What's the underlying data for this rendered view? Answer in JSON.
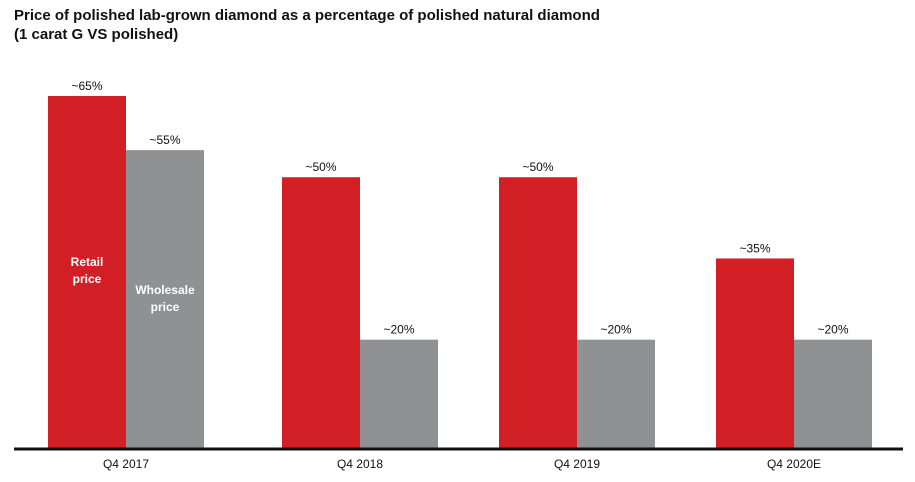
{
  "chart_data": {
    "type": "bar",
    "title": "Price of polished lab-grown diamond as a percentage of polished natural diamond",
    "subtitle": "(1 carat G VS polished)",
    "xlabel": "",
    "ylabel": "",
    "ylim": [
      0,
      65
    ],
    "grid": false,
    "legend": "inline labels on first group",
    "categories": [
      "Q4 2017",
      "Q4 2018",
      "Q4 2019",
      "Q4 2020E"
    ],
    "series": [
      {
        "name": "Retail price",
        "color": "#d21f26",
        "values": [
          65,
          50,
          50,
          35
        ],
        "labels": [
          "~65%",
          "~50%",
          "~50%",
          "~35%"
        ]
      },
      {
        "name": "Wholesale price",
        "color": "#8f9192",
        "values": [
          55,
          20,
          20,
          20
        ],
        "labels": [
          "~55%",
          "~20%",
          "~20%",
          "~20%"
        ]
      }
    ],
    "inline_labels": [
      {
        "series": 0,
        "lines": [
          "Retail",
          "price"
        ]
      },
      {
        "series": 1,
        "lines": [
          "Wholesale",
          "price"
        ]
      }
    ]
  }
}
